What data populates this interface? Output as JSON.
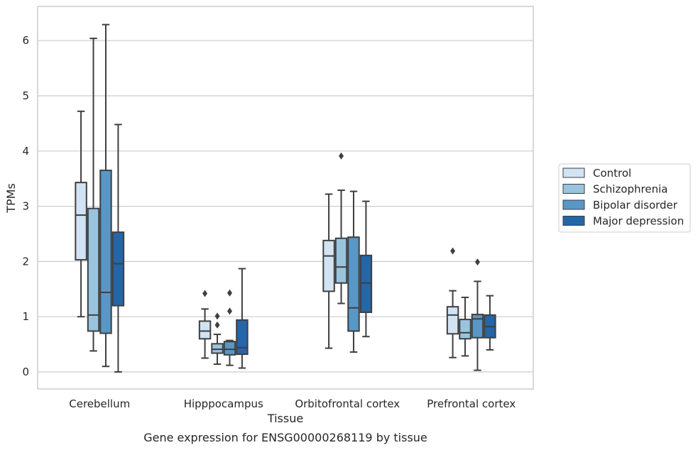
{
  "chart_data": {
    "type": "box",
    "xlabel": "Tissue",
    "ylabel": "TPMs",
    "caption": "Gene expression for ENSG00000268119 by tissue",
    "ylim": [
      -0.3,
      6.6
    ],
    "yticks": [
      0,
      1,
      2,
      3,
      4,
      5,
      6
    ],
    "grid": "horizontal",
    "legend_position": "right",
    "categories": [
      "Cerebellum",
      "Hipppocampus",
      "Orbitofrontal cortex",
      "Prefrontal cortex"
    ],
    "series": [
      {
        "name": "Control",
        "color": "#d2e3f3",
        "boxes": [
          {
            "whislo": 1.0,
            "q1": 2.03,
            "med": 2.84,
            "q3": 3.43,
            "whishi": 4.72,
            "fliers": []
          },
          {
            "whislo": 0.25,
            "q1": 0.6,
            "med": 0.74,
            "q3": 0.92,
            "whishi": 1.14,
            "fliers": [
              1.42
            ]
          },
          {
            "whislo": 0.43,
            "q1": 1.46,
            "med": 2.1,
            "q3": 2.38,
            "whishi": 3.22,
            "fliers": []
          },
          {
            "whislo": 0.26,
            "q1": 0.69,
            "med": 1.03,
            "q3": 1.18,
            "whishi": 1.47,
            "fliers": [
              2.19
            ]
          }
        ]
      },
      {
        "name": "Schizophrenia",
        "color": "#9ac4de",
        "boxes": [
          {
            "whislo": 0.38,
            "q1": 0.74,
            "med": 1.03,
            "q3": 2.96,
            "whishi": 6.04,
            "fliers": []
          },
          {
            "whislo": 0.14,
            "q1": 0.34,
            "med": 0.41,
            "q3": 0.51,
            "whishi": 0.68,
            "fliers": [
              0.85,
              1.01
            ]
          },
          {
            "whislo": 1.24,
            "q1": 1.61,
            "med": 1.9,
            "q3": 2.42,
            "whishi": 3.29,
            "fliers": [
              3.91
            ]
          },
          {
            "whislo": 0.29,
            "q1": 0.6,
            "med": 0.71,
            "q3": 0.95,
            "whishi": 1.35,
            "fliers": []
          }
        ]
      },
      {
        "name": "Bipolar disorder",
        "color": "#5897c6",
        "boxes": [
          {
            "whislo": 0.1,
            "q1": 0.7,
            "med": 1.44,
            "q3": 3.65,
            "whishi": 6.29,
            "fliers": []
          },
          {
            "whislo": 0.12,
            "q1": 0.31,
            "med": 0.41,
            "q3": 0.55,
            "whishi": 0.57,
            "fliers": [
              1.1,
              1.43
            ]
          },
          {
            "whislo": 0.36,
            "q1": 0.74,
            "med": 1.16,
            "q3": 2.44,
            "whishi": 3.27,
            "fliers": []
          },
          {
            "whislo": 0.03,
            "q1": 0.62,
            "med": 0.96,
            "q3": 1.04,
            "whishi": 1.64,
            "fliers": [
              1.99
            ]
          }
        ]
      },
      {
        "name": "Major depression",
        "color": "#2466a8",
        "boxes": [
          {
            "whislo": 0.0,
            "q1": 1.2,
            "med": 1.96,
            "q3": 2.53,
            "whishi": 4.48,
            "fliers": []
          },
          {
            "whislo": 0.07,
            "q1": 0.32,
            "med": 0.44,
            "q3": 0.94,
            "whishi": 1.87,
            "fliers": []
          },
          {
            "whislo": 0.64,
            "q1": 1.08,
            "med": 1.61,
            "q3": 2.11,
            "whishi": 3.09,
            "fliers": []
          },
          {
            "whislo": 0.4,
            "q1": 0.62,
            "med": 0.82,
            "q3": 1.03,
            "whishi": 1.38,
            "fliers": []
          }
        ]
      }
    ]
  }
}
